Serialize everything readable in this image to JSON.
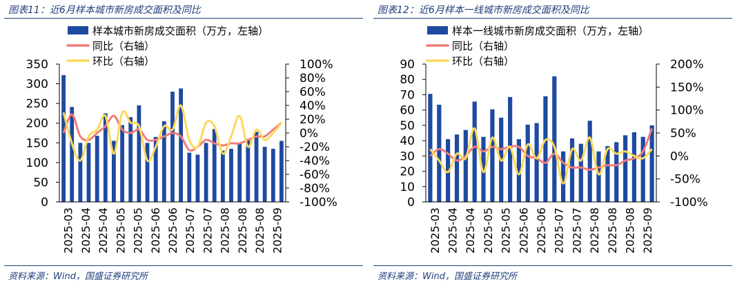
{
  "panels": [
    {
      "title": "图表11：近6月样本城市新房成交面积及同比",
      "source": "资料来源：Wind，国盛证券研究所",
      "chart_data": {
        "type": "bar+line",
        "title": "近6月样本城市新房成交面积及同比",
        "legend": [
          {
            "name": "样本城市新房成交面积（万方，左轴）",
            "kind": "bar",
            "color": "#1e4aa0"
          },
          {
            "name": "同比（右轴）",
            "kind": "line",
            "color": "#f07b7b"
          },
          {
            "name": "环比（右轴）",
            "kind": "line",
            "color": "#fbd95c"
          }
        ],
        "x_tick_labels": [
          "2025-03",
          "2025-04",
          "2025-04",
          "2025-05",
          "2025-05",
          "2025-06",
          "2025-06",
          "2025-07",
          "2025-07",
          "2025-08",
          "2025-08",
          "2025-08",
          "2025-09"
        ],
        "y_left": {
          "min": 0,
          "max": 350,
          "step": 50,
          "ticks": [
            "0",
            "50",
            "100",
            "150",
            "200",
            "250",
            "300",
            "350"
          ]
        },
        "y_right": {
          "min": -100,
          "max": 100,
          "step": 20,
          "ticks": [
            "-100%",
            "-80%",
            "-60%",
            "-40%",
            "-20%",
            "0%",
            "20%",
            "40%",
            "60%",
            "80%",
            "100%"
          ]
        },
        "bars": [
          322,
          241,
          150,
          150,
          168,
          225,
          155,
          195,
          215,
          245,
          150,
          165,
          205,
          280,
          288,
          125,
          120,
          150,
          185,
          130,
          135,
          150,
          160,
          178,
          140,
          135,
          155
        ],
        "yoy": [
          0,
          27,
          -5,
          -10,
          0,
          10,
          25,
          5,
          0,
          5,
          -10,
          -10,
          -5,
          0,
          -5,
          -25,
          -20,
          -10,
          -15,
          -18,
          -15,
          -15,
          -10,
          -5,
          -5,
          5,
          15
        ],
        "mom": [
          30,
          -15,
          -40,
          -5,
          5,
          25,
          -30,
          30,
          15,
          10,
          -40,
          -20,
          10,
          5,
          40,
          -10,
          -20,
          15,
          10,
          -30,
          -5,
          25,
          -20,
          5,
          -10,
          0,
          15
        ]
      }
    },
    {
      "title": "图表12：近6月样本一线城市新房成交面积及同比",
      "source": "资料来源：Wind，国盛证券研究所",
      "chart_data": {
        "type": "bar+line",
        "title": "近6月样本一线城市新房成交面积及同比",
        "legend": [
          {
            "name": "样本一线城市新房成交面积（万方，左轴）",
            "kind": "bar",
            "color": "#1e4aa0"
          },
          {
            "name": "同比（右轴）",
            "kind": "line",
            "color": "#f07b7b"
          },
          {
            "name": "环比（右轴）",
            "kind": "line",
            "color": "#fbd95c"
          }
        ],
        "x_tick_labels": [
          "2025-03",
          "2025-04",
          "2025-04",
          "2025-05",
          "2025-05",
          "2025-06",
          "2025-06",
          "2025-07",
          "2025-07",
          "2025-08",
          "2025-08",
          "2025-08",
          "2025-09"
        ],
        "y_left": {
          "min": 0,
          "max": 90,
          "step": 10,
          "ticks": [
            "0",
            "10",
            "20",
            "30",
            "40",
            "50",
            "60",
            "70",
            "80",
            "90"
          ]
        },
        "y_right": {
          "min": -100,
          "max": 200,
          "step": 50,
          "ticks": [
            "-100%",
            "-50%",
            "0%",
            "50%",
            "100%",
            "150%",
            "200%"
          ]
        },
        "bars": [
          70.5,
          63.5,
          41,
          44,
          47,
          65.5,
          42.5,
          60.5,
          55,
          68.5,
          41,
          50.5,
          51.5,
          69,
          82,
          33,
          41.5,
          38,
          53,
          33,
          36.5,
          39,
          43.5,
          45.5,
          42.5,
          50
        ],
        "yoy": [
          0,
          15,
          5,
          -10,
          0,
          20,
          10,
          20,
          15,
          20,
          20,
          0,
          -5,
          -15,
          5,
          -15,
          -25,
          -25,
          -30,
          -25,
          -20,
          -20,
          -10,
          -5,
          10,
          60
        ],
        "mom": [
          15,
          -10,
          -35,
          5,
          -5,
          60,
          -35,
          40,
          -10,
          20,
          -40,
          25,
          -5,
          35,
          20,
          -60,
          15,
          -10,
          40,
          -40,
          15,
          5,
          10,
          0,
          -5,
          15
        ]
      }
    }
  ]
}
